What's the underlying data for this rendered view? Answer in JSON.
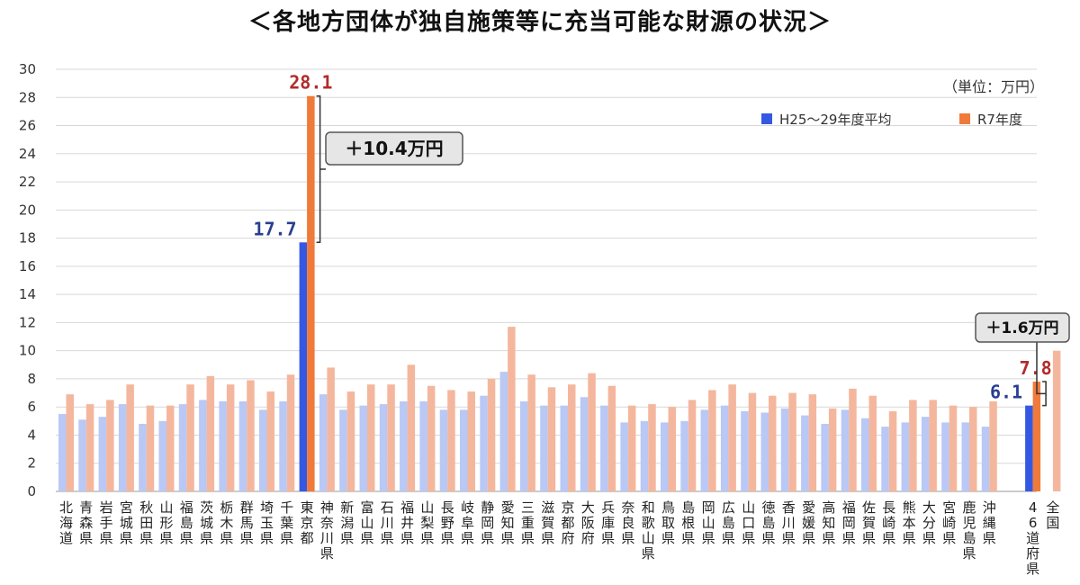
{
  "title": "＜各地方団体が独自施策等に充当可能な財源の状況＞",
  "unit_label": "（単位：万円）",
  "legend": {
    "items": [
      {
        "name": "H25～29年度平均",
        "color": "#3558e3"
      },
      {
        "name": "R7年度",
        "color": "#f07a3a"
      }
    ]
  },
  "colors": {
    "h25_light": "#b9c8f4",
    "h25_dark": "#3558e3",
    "r7_light": "#f4b79d",
    "r7_dark": "#f07a3a",
    "label_blue": "#2a3f8f",
    "label_red": "#b32a2a",
    "grid": "#d8d8d8"
  },
  "annotations": [
    {
      "text": "＋10.4万円",
      "applies_to": "東京都"
    },
    {
      "text": "＋1.6万円",
      "applies_to": "46道府県"
    }
  ],
  "chart_data": {
    "type": "bar",
    "title": "＜各地方団体が独自施策等に充当可能な財源の状況＞",
    "ylabel": "（単位：万円）",
    "ylim": [
      0,
      30
    ],
    "yticks": [
      0,
      2,
      4,
      6,
      8,
      10,
      12,
      14,
      16,
      18,
      20,
      22,
      24,
      26,
      28,
      30
    ],
    "grid": true,
    "legend_position": "top-right",
    "categories": [
      "北海道",
      "青森県",
      "岩手県",
      "宮城県",
      "秋田県",
      "山形県",
      "福島県",
      "茨城県",
      "栃木県",
      "群馬県",
      "埼玉県",
      "千葉県",
      "東京都",
      "神奈川県",
      "新潟県",
      "富山県",
      "石川県",
      "福井県",
      "山梨県",
      "長野県",
      "岐阜県",
      "静岡県",
      "愛知県",
      "三重県",
      "滋賀県",
      "京都府",
      "大阪府",
      "兵庫県",
      "奈良県",
      "和歌山県",
      "鳥取県",
      "島根県",
      "岡山県",
      "広島県",
      "山口県",
      "徳島県",
      "香川県",
      "愛媛県",
      "高知県",
      "福岡県",
      "佐賀県",
      "長崎県",
      "熊本県",
      "大分県",
      "宮崎県",
      "鹿児島県",
      "沖縄県",
      "46道府県",
      "全国"
    ],
    "series": [
      {
        "name": "H25～29年度平均",
        "values": [
          5.5,
          5.1,
          5.3,
          6.2,
          4.8,
          5.0,
          6.2,
          6.5,
          6.4,
          6.4,
          5.8,
          6.4,
          17.7,
          6.9,
          5.8,
          6.1,
          6.2,
          6.4,
          6.4,
          5.8,
          5.8,
          6.8,
          8.5,
          6.4,
          6.1,
          6.1,
          6.7,
          6.1,
          4.9,
          5.0,
          4.9,
          5.0,
          5.8,
          6.1,
          5.7,
          5.6,
          5.9,
          5.4,
          4.8,
          5.8,
          5.2,
          4.6,
          4.9,
          5.3,
          4.9,
          4.9,
          4.6,
          6.1,
          null
        ]
      },
      {
        "name": "R7年度",
        "values": [
          6.9,
          6.2,
          6.5,
          7.6,
          6.1,
          6.1,
          7.6,
          8.2,
          7.6,
          7.9,
          7.1,
          8.3,
          28.1,
          8.8,
          7.1,
          7.6,
          7.6,
          9.0,
          7.5,
          7.2,
          7.1,
          8.0,
          11.7,
          8.3,
          7.4,
          7.6,
          8.4,
          7.5,
          6.1,
          6.2,
          6.0,
          6.5,
          7.2,
          7.6,
          7.0,
          6.8,
          7.0,
          6.9,
          5.9,
          7.3,
          6.8,
          5.7,
          6.5,
          6.5,
          6.1,
          6.0,
          6.4,
          7.8,
          10.0
        ]
      }
    ],
    "data_labels": [
      {
        "category": "東京都",
        "series": "H25～29年度平均",
        "text": "17.7"
      },
      {
        "category": "東京都",
        "series": "R7年度",
        "text": "28.1"
      },
      {
        "category": "46道府県",
        "series": "H25～29年度平均",
        "text": "6.1"
      },
      {
        "category": "46道府県",
        "series": "R7年度",
        "text": "7.8"
      }
    ]
  }
}
